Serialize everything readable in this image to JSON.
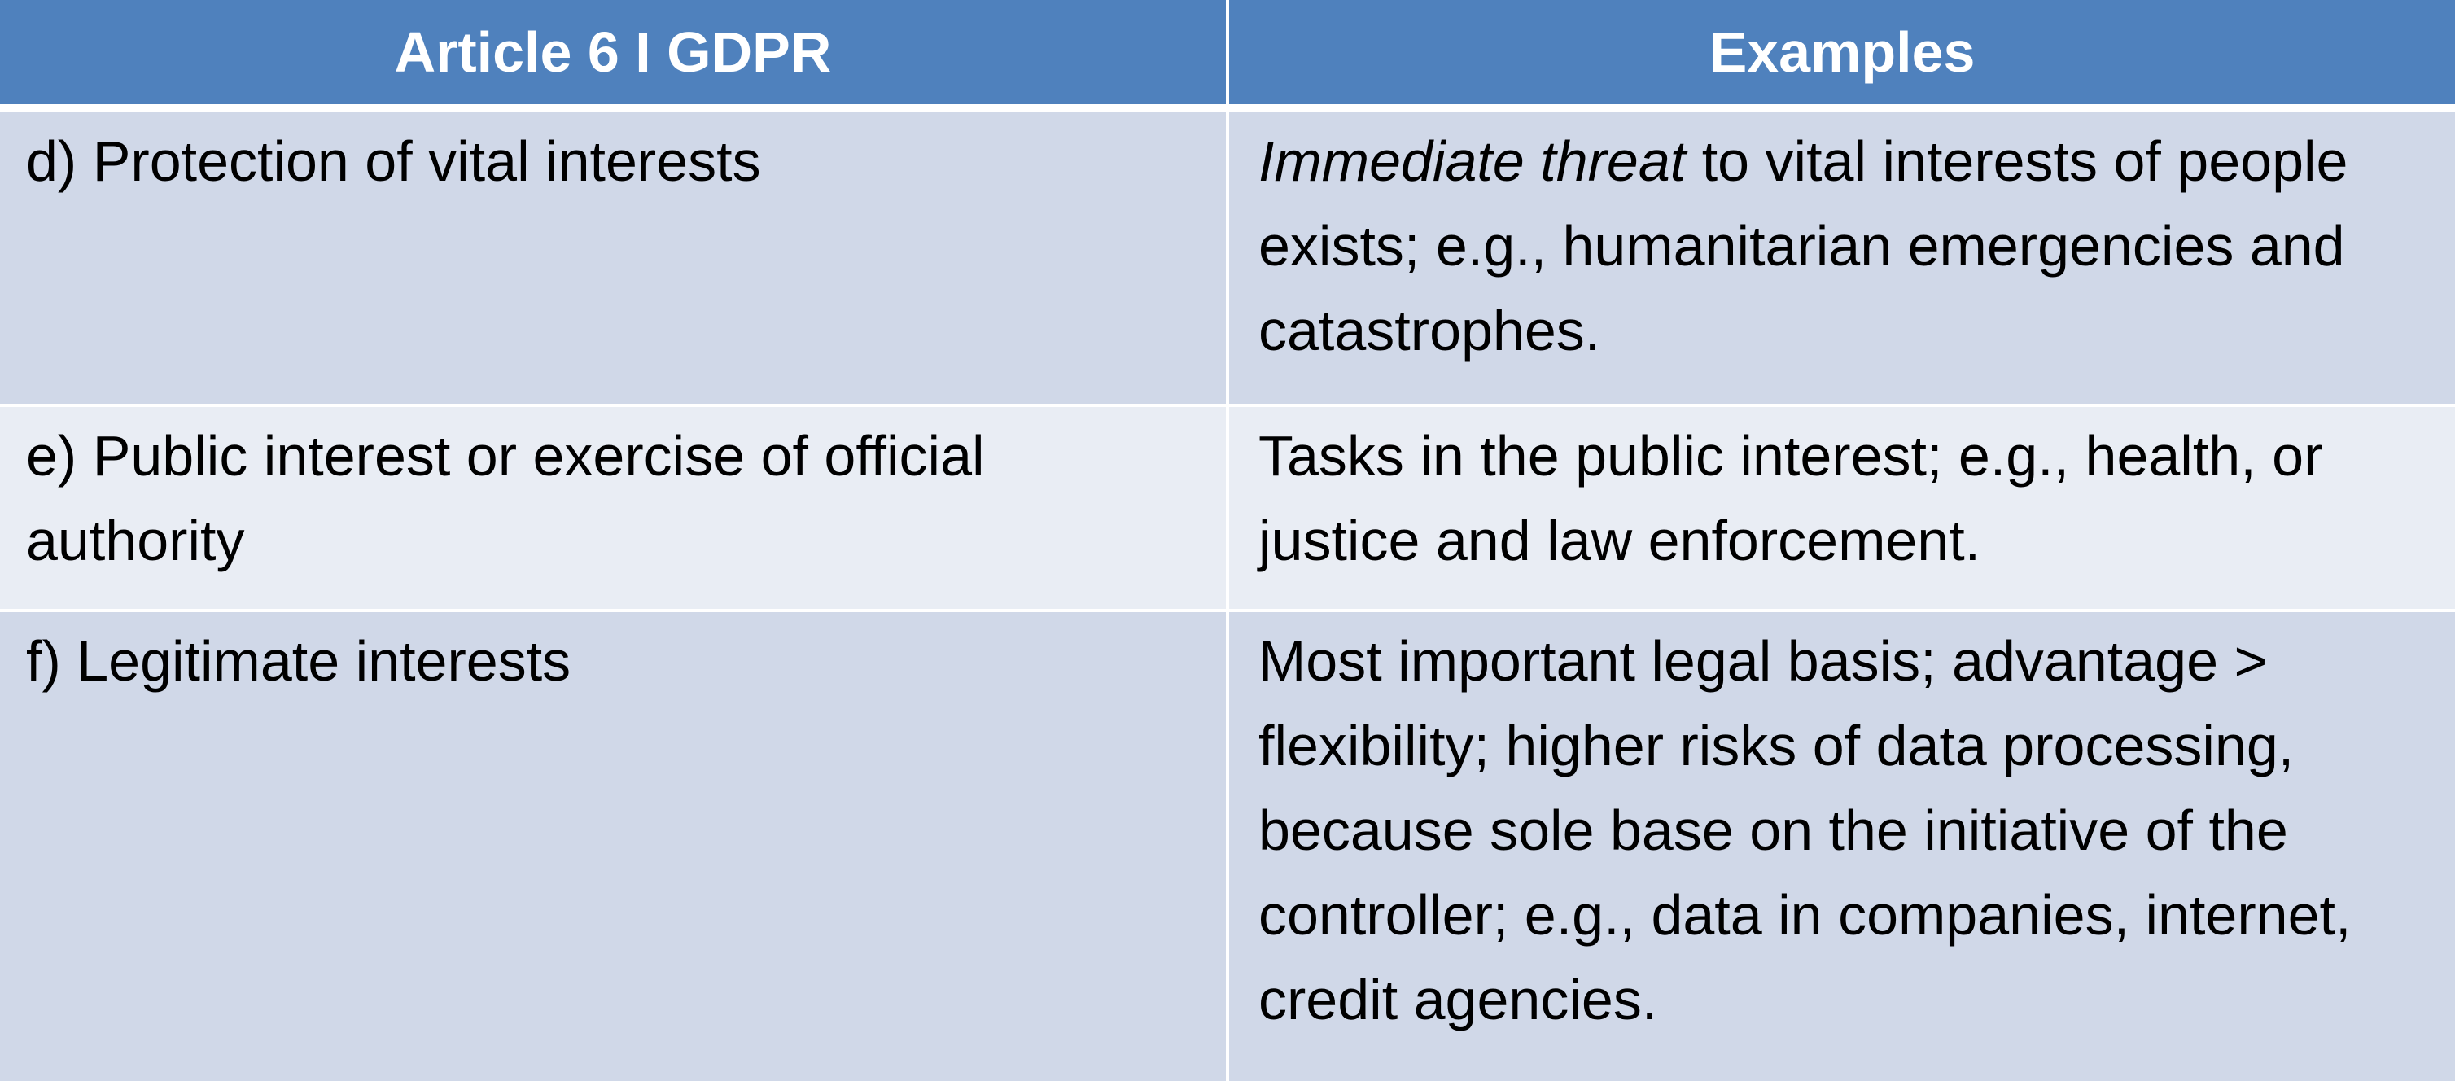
{
  "table": {
    "headers": [
      "Article 6 I GDPR",
      "Examples"
    ],
    "rows": [
      {
        "article": "d) Protection of vital interests",
        "example_emphasis": "Immediate threat",
        "example_rest": " to vital interests of people exists; e.g., humanitarian emergencies and catastrophes."
      },
      {
        "article": "e) Public interest or exercise of official authority",
        "example": "Tasks in the public interest; e.g., health, or justice and law enforcement."
      },
      {
        "article": "f) Legitimate interests",
        "example": "Most important legal basis; advantage > flexibility; higher risks of data processing, because sole base on the initiative of the controller; e.g., data in companies, internet, credit agencies."
      }
    ],
    "colors": {
      "header_bg": "#4f81bd",
      "row_dark": "#d0d8e8",
      "row_light": "#e9edf4"
    }
  }
}
